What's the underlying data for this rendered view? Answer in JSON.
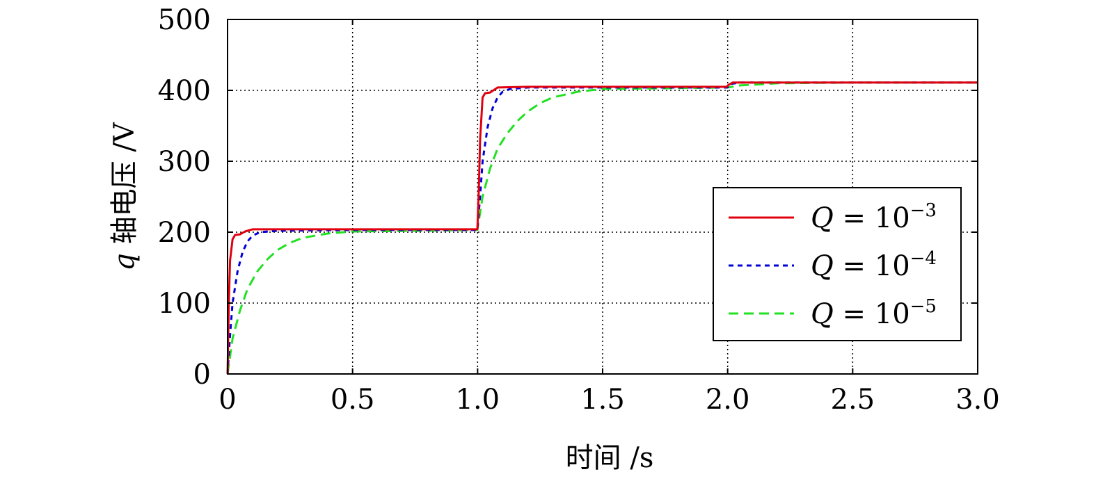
{
  "chart_data": {
    "type": "line",
    "title": "",
    "xlabel": "时间 /s",
    "ylabel_var": "q",
    "ylabel_rest": " 轴电压 /V",
    "xlim": [
      0,
      3.0
    ],
    "ylim": [
      0,
      500
    ],
    "xticks": [
      0,
      0.5,
      1.0,
      1.5,
      2.0,
      2.5,
      3.0
    ],
    "xtick_labels": [
      "0",
      "0.5",
      "1.0",
      "1.5",
      "2.0",
      "2.5",
      "3.0"
    ],
    "yticks": [
      0,
      100,
      200,
      300,
      400,
      500
    ],
    "ytick_labels": [
      "0",
      "100",
      "200",
      "300",
      "400",
      "500"
    ],
    "grid": true,
    "legend_position": "right",
    "series": [
      {
        "name_var": "Q",
        "name_eq": " = 10",
        "name_exp": "−3",
        "color": "#e0000e",
        "dash": "solid",
        "x": [
          0,
          0.005,
          0.01,
          0.02,
          0.03,
          0.05,
          0.07,
          0.1,
          0.5,
          0.999,
          1.005,
          1.01,
          1.02,
          1.03,
          1.05,
          1.08,
          1.2,
          1.5,
          1.995,
          2.005,
          2.02,
          2.1,
          2.5,
          3.0
        ],
        "y": [
          0,
          100,
          160,
          190,
          196,
          197,
          201,
          204,
          204,
          204,
          260,
          330,
          390,
          396,
          397,
          404,
          405,
          405,
          405,
          408,
          411,
          411,
          411,
          411
        ]
      },
      {
        "name_var": "Q",
        "name_eq": " = 10",
        "name_exp": "−4",
        "color": "#0000d8",
        "dash": "dashed",
        "x": [
          0,
          0.01,
          0.02,
          0.04,
          0.06,
          0.08,
          0.1,
          0.13,
          0.2,
          0.5,
          0.999,
          1.01,
          1.02,
          1.04,
          1.06,
          1.08,
          1.1,
          1.13,
          1.2,
          1.5,
          1.999,
          2.01,
          2.05,
          2.5,
          3.0
        ],
        "y": [
          0,
          55,
          100,
          145,
          172,
          187,
          195,
          200,
          202,
          203,
          203,
          250,
          300,
          348,
          375,
          390,
          398,
          402,
          404,
          404,
          404,
          409,
          411,
          411,
          411
        ]
      },
      {
        "name_var": "Q",
        "name_eq": " = 10",
        "name_exp": "−5",
        "color": "#22e022",
        "dash": "dashed",
        "x": [
          0,
          0.02,
          0.05,
          0.08,
          0.12,
          0.16,
          0.2,
          0.25,
          0.3,
          0.4,
          0.5,
          0.999,
          1.02,
          1.05,
          1.08,
          1.12,
          1.16,
          1.2,
          1.25,
          1.3,
          1.4,
          1.5,
          1.999,
          2.05,
          2.2,
          2.5,
          3.0
        ],
        "y": [
          0,
          50,
          90,
          120,
          145,
          162,
          175,
          185,
          192,
          198,
          201,
          203,
          250,
          290,
          318,
          340,
          357,
          370,
          382,
          390,
          398,
          402,
          404,
          407,
          410,
          411,
          411
        ]
      }
    ]
  }
}
